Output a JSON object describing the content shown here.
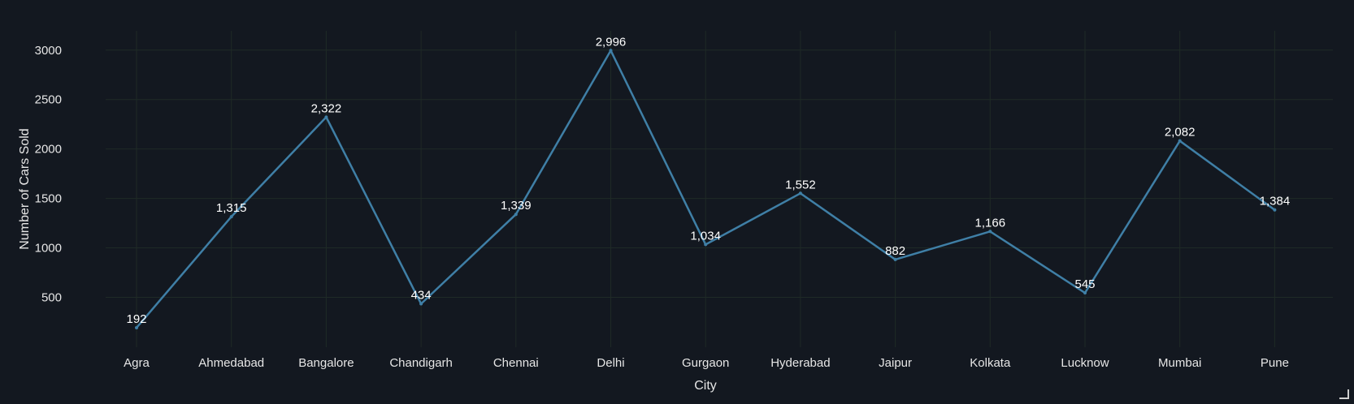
{
  "chart_data": {
    "type": "line",
    "xlabel": "City",
    "ylabel": "Number of Cars Sold",
    "categories": [
      "Agra",
      "Ahmedabad",
      "Bangalore",
      "Chandigarh",
      "Chennai",
      "Delhi",
      "Gurgaon",
      "Hyderabad",
      "Jaipur",
      "Kolkata",
      "Lucknow",
      "Mumbai",
      "Pune"
    ],
    "values": [
      192,
      1315,
      2322,
      434,
      1339,
      2996,
      1034,
      1552,
      882,
      1166,
      545,
      2082,
      1384
    ],
    "data_labels": [
      "192",
      "1,315",
      "2,322",
      "434",
      "1,339",
      "2,996",
      "1,034",
      "1,552",
      "882",
      "1,166",
      "545",
      "2,082",
      "1,384"
    ],
    "yticks": [
      500,
      1000,
      1500,
      2000,
      2500,
      3000
    ],
    "ylim": [
      0,
      3000
    ],
    "grid": true,
    "colors": {
      "line": "#3f7fa6",
      "background": "#131820",
      "grid": "#1f2a26",
      "text": "#e6e6e6"
    }
  }
}
